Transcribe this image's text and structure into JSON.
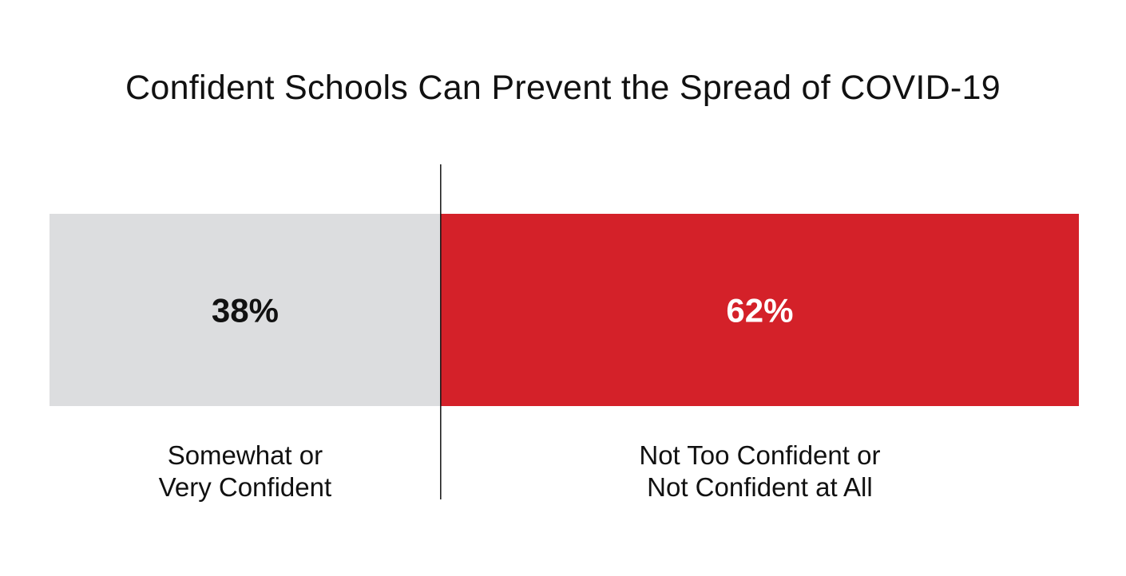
{
  "chart_data": {
    "type": "bar",
    "orientation": "horizontal-stacked",
    "title": "Confident Schools Can Prevent the Spread of COVID-19",
    "xlabel": "",
    "ylabel": "",
    "xlim": [
      0,
      100
    ],
    "grid": false,
    "legend": "none",
    "unit": "%",
    "segments": [
      {
        "value": 38,
        "value_label": "38%",
        "label_lines": [
          "Somewhat or",
          "Very Confident"
        ],
        "color": "#dcdddf",
        "text_color": "#111111"
      },
      {
        "value": 62,
        "value_label": "62%",
        "label_lines": [
          "Not Too Confident or",
          "Not Confident at All"
        ],
        "color": "#d42129",
        "text_color": "#ffffff"
      }
    ],
    "divider_color": "#111111"
  }
}
